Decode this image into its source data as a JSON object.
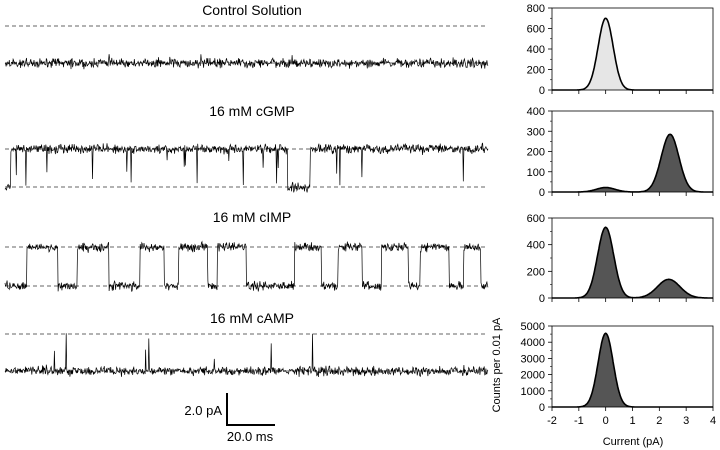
{
  "chart_data": [
    {
      "type": "line",
      "title": "Control Solution",
      "description_levels_pA": {
        "closed": 0,
        "open": 2.4
      },
      "events": "no openings; trace stays at closed level"
    },
    {
      "type": "line",
      "title": "16 mM cGMP",
      "description_levels_pA": {
        "closed": 0,
        "open": 2.4
      },
      "events": "mostly open with brief closures"
    },
    {
      "type": "line",
      "title": "16 mM cIMP",
      "description_levels_pA": {
        "closed": 0,
        "open": 2.4
      },
      "events": "frequent transitions between open and closed"
    },
    {
      "type": "line",
      "title": "16 mM cAMP",
      "description_levels_pA": {
        "closed": 0,
        "open": 2.4
      },
      "events": "mostly closed with rare brief openings"
    },
    {
      "type": "area",
      "panel": "control-histogram",
      "xlim": [
        -2,
        4
      ],
      "ylim": [
        0,
        800
      ],
      "yticks": [
        "0",
        "200",
        "400",
        "600",
        "800"
      ],
      "peaks": [
        {
          "center": 0,
          "height": 700,
          "sigma": 0.28
        }
      ],
      "fill": "#e6e6e6"
    },
    {
      "type": "area",
      "panel": "cgmp-histogram",
      "xlim": [
        -2,
        4
      ],
      "ylim": [
        0,
        400
      ],
      "yticks": [
        "0",
        "100",
        "200",
        "300",
        "400"
      ],
      "peaks": [
        {
          "center": 0,
          "height": 22,
          "sigma": 0.35
        },
        {
          "center": 2.4,
          "height": 285,
          "sigma": 0.33
        }
      ],
      "fill": "#555555"
    },
    {
      "type": "area",
      "panel": "cimp-histogram",
      "xlim": [
        -2,
        4
      ],
      "ylim": [
        0,
        600
      ],
      "yticks": [
        "0",
        "200",
        "400",
        "600"
      ],
      "peaks": [
        {
          "center": 0,
          "height": 530,
          "sigma": 0.3
        },
        {
          "center": 2.35,
          "height": 140,
          "sigma": 0.42
        }
      ],
      "fill": "#555555"
    },
    {
      "type": "area",
      "panel": "camp-histogram",
      "xlim": [
        -2,
        4
      ],
      "ylim": [
        0,
        5000
      ],
      "yticks": [
        "0",
        "1000",
        "2000",
        "3000",
        "4000",
        "5000"
      ],
      "peaks": [
        {
          "center": 0,
          "height": 4550,
          "sigma": 0.28
        }
      ],
      "fill": "#555555"
    }
  ],
  "shared": {
    "xticks": [
      "-2",
      "-1",
      "0",
      "1",
      "2",
      "3",
      "4"
    ],
    "xlabel": "Current (pA)",
    "ylabel": "Counts per 0.01 pA"
  },
  "scalebar": {
    "current": "2.0 pA",
    "time": "20.0 ms"
  }
}
